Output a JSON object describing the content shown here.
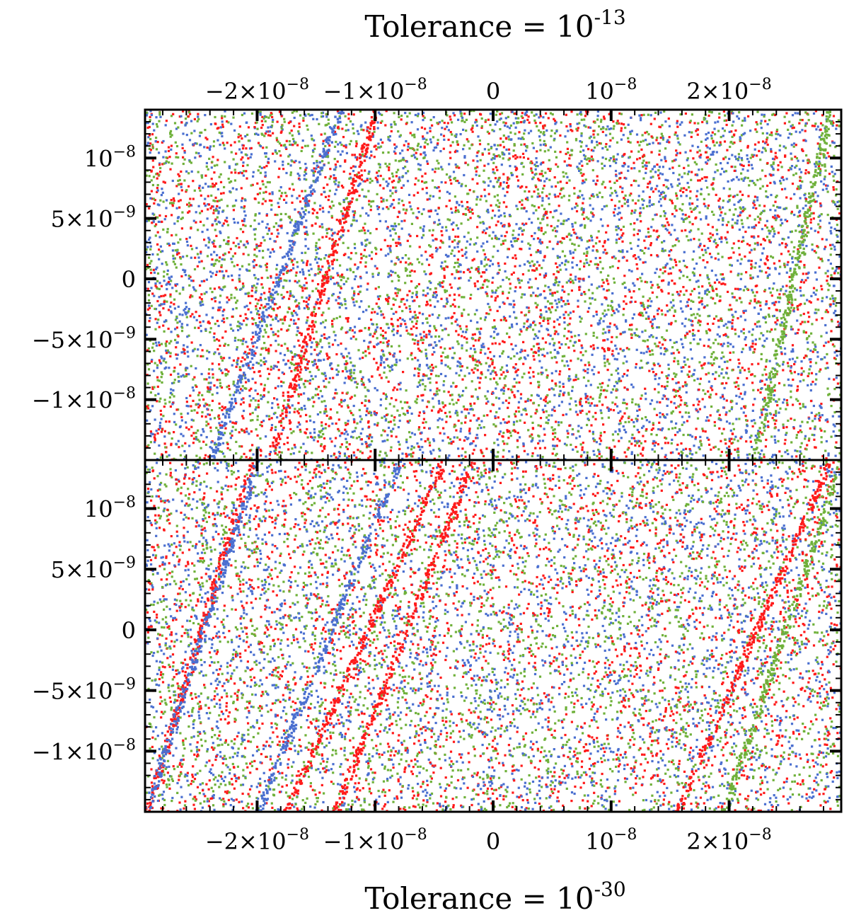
{
  "chart_data": [
    {
      "type": "scatter",
      "panel": "top",
      "title": "Tolerance = 10",
      "title_exponent": "-13",
      "xlim": [
        -2.95e-08,
        2.95e-08
      ],
      "ylim": [
        -1.5e-08,
        1.4e-08
      ],
      "x_ticks": [
        {
          "value": -2e-08,
          "label": "−2×10",
          "exp": "−8"
        },
        {
          "value": -1e-08,
          "label": "−1×10",
          "exp": "−8"
        },
        {
          "value": 0,
          "label": "0",
          "exp": ""
        },
        {
          "value": 1e-08,
          "label": "10",
          "exp": "−8"
        },
        {
          "value": 2e-08,
          "label": "2×10",
          "exp": "−8"
        }
      ],
      "y_ticks": [
        {
          "value": 1e-08,
          "label": "10",
          "exp": "−8"
        },
        {
          "value": 5e-09,
          "label": "5×10",
          "exp": "−9"
        },
        {
          "value": 0,
          "label": "0",
          "exp": ""
        },
        {
          "value": -5e-09,
          "label": "−5×10",
          "exp": "−9"
        },
        {
          "value": -1e-08,
          "label": "−1×10",
          "exp": "−8"
        }
      ],
      "series": [
        {
          "color": "#ff1a1a",
          "distribution": "uniform noise with faint diagonal streaks",
          "streaks": [
            {
              "x_at_top": -1e-08,
              "x_at_bottom": -1.9e-08
            }
          ]
        },
        {
          "color": "#4a6fd0",
          "distribution": "uniform noise",
          "streaks": [
            {
              "x_at_top": -1.3e-08,
              "x_at_bottom": -2.4e-08
            }
          ]
        },
        {
          "color": "#6fb13a",
          "distribution": "uniform noise",
          "streaks": [
            {
              "x_at_top": 2.85e-08,
              "x_at_bottom": 2.2e-08
            }
          ]
        }
      ]
    },
    {
      "type": "scatter",
      "panel": "bottom",
      "title": "Tolerance = 10",
      "title_exponent": "-30",
      "xlim": [
        -2.95e-08,
        2.95e-08
      ],
      "ylim": [
        -1.5e-08,
        1.4e-08
      ],
      "x_ticks": [
        {
          "value": -2e-08,
          "label": "−2×10",
          "exp": "−8"
        },
        {
          "value": -1e-08,
          "label": "−1×10",
          "exp": "−8"
        },
        {
          "value": 0,
          "label": "0",
          "exp": ""
        },
        {
          "value": 1e-08,
          "label": "10",
          "exp": "−8"
        },
        {
          "value": 2e-08,
          "label": "2×10",
          "exp": "−8"
        }
      ],
      "y_ticks": [
        {
          "value": 1e-08,
          "label": "10",
          "exp": "−8"
        },
        {
          "value": 5e-09,
          "label": "5×10",
          "exp": "−9"
        },
        {
          "value": 0,
          "label": "0",
          "exp": ""
        },
        {
          "value": -5e-09,
          "label": "−5×10",
          "exp": "−9"
        },
        {
          "value": -1e-08,
          "label": "−1×10",
          "exp": "−8"
        }
      ],
      "series": [
        {
          "color": "#ff1a1a",
          "distribution": "uniform noise with strong diagonal streaks",
          "streaks": [
            {
              "x_at_top": -4.2e-09,
              "x_at_bottom": -1.77e-08
            },
            {
              "x_at_top": -1.8e-09,
              "x_at_bottom": -1.35e-08
            },
            {
              "x_at_top": -2.05e-08,
              "x_at_bottom": -2.95e-08
            },
            {
              "x_at_top": 2.85e-08,
              "x_at_bottom": 1.55e-08
            }
          ]
        },
        {
          "color": "#4a6fd0",
          "distribution": "uniform noise with diagonal streaks",
          "streaks": [
            {
              "x_at_top": -2e-08,
              "x_at_bottom": -2.95e-08
            },
            {
              "x_at_top": -8e-09,
              "x_at_bottom": -2e-08
            }
          ]
        },
        {
          "color": "#6fb13a",
          "distribution": "uniform noise with diagonal streak",
          "streaks": [
            {
              "x_at_top": 2.95e-08,
              "x_at_bottom": 1.95e-08
            }
          ]
        }
      ]
    }
  ]
}
